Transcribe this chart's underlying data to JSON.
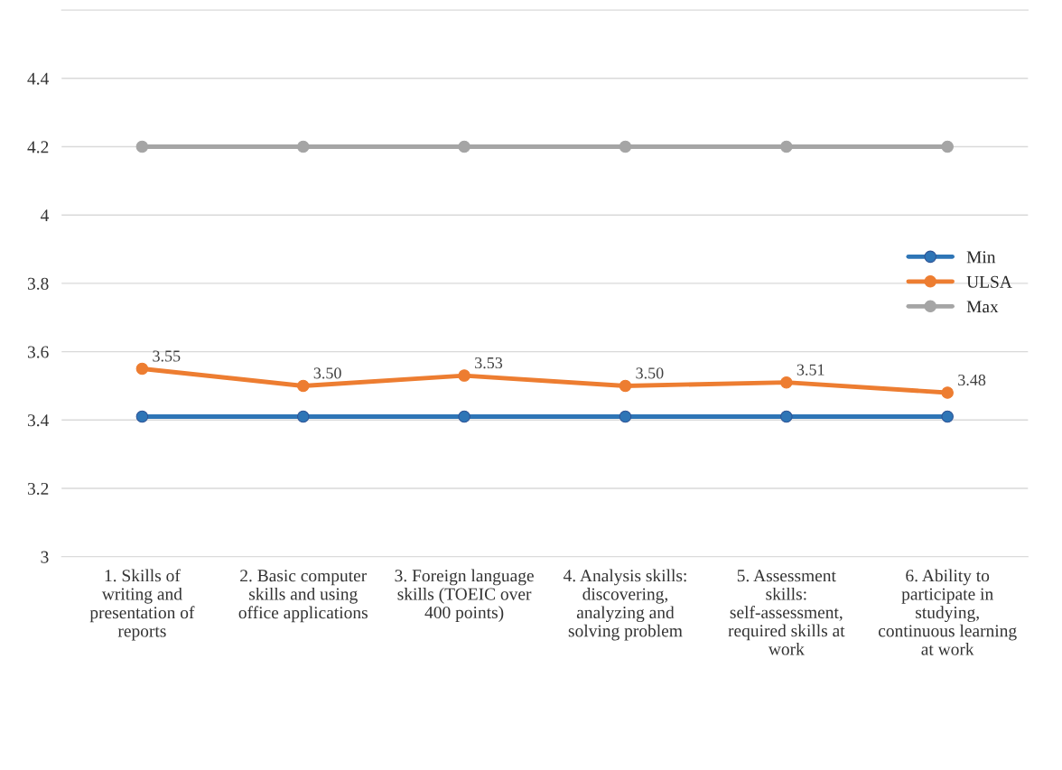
{
  "chart_data": {
    "type": "line",
    "categories": [
      "1. Skills of writing and presentation of reports",
      "2. Basic computer skills and using office applications",
      "3. Foreign language skills (TOEIC over 400 points)",
      "4. Analysis skills: discovering, analyzing and solving problem",
      "5. Assessment skills: self-assessment, required skills at work",
      "6. Ability to participate in studying, continuous learning at work"
    ],
    "series": [
      {
        "name": "Min",
        "color": "#2e75b6",
        "values": [
          3.41,
          3.41,
          3.41,
          3.41,
          3.41,
          3.41
        ]
      },
      {
        "name": "ULSA",
        "color": "#ed7d31",
        "values": [
          3.55,
          3.5,
          3.53,
          3.5,
          3.51,
          3.48
        ],
        "value_labels": [
          "3.55",
          "3.50",
          "3.53",
          "3.50",
          "3.51",
          "3.48"
        ]
      },
      {
        "name": "Max",
        "color": "#a5a5a5",
        "values": [
          4.2,
          4.2,
          4.2,
          4.2,
          4.2,
          4.2
        ]
      }
    ],
    "ylim": [
      3,
      4.6
    ],
    "yticks": [
      3,
      3.2,
      3.4,
      3.6,
      3.8,
      4,
      4.2,
      4.4
    ],
    "grid": "y",
    "legend": "right",
    "marker": "circle",
    "line_style": "solid"
  }
}
